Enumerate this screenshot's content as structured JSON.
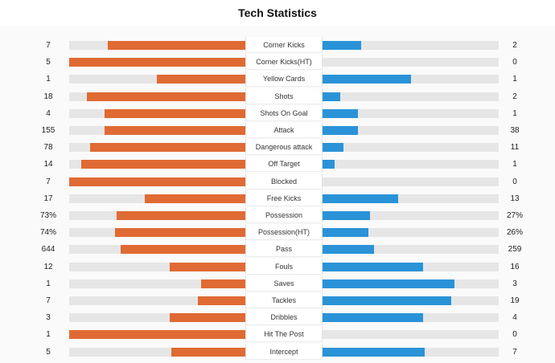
{
  "title": "Tech Statistics",
  "colors": {
    "home": "#e06a33",
    "away": "#2a93d8",
    "track": "#e6e6e6"
  },
  "stats": [
    {
      "label": "Corner Kicks",
      "home": "7",
      "away": "2",
      "home_share": 0.78,
      "away_share": 0.22
    },
    {
      "label": "Corner Kicks(HT)",
      "home": "5",
      "away": "0",
      "home_share": 1.0,
      "away_share": 0.0
    },
    {
      "label": "Yellow Cards",
      "home": "1",
      "away": "1",
      "home_share": 0.5,
      "away_share": 0.5
    },
    {
      "label": "Shots",
      "home": "18",
      "away": "2",
      "home_share": 0.9,
      "away_share": 0.1
    },
    {
      "label": "Shots On Goal",
      "home": "4",
      "away": "1",
      "home_share": 0.8,
      "away_share": 0.2
    },
    {
      "label": "Attack",
      "home": "155",
      "away": "38",
      "home_share": 0.8,
      "away_share": 0.2
    },
    {
      "label": "Dangerous attack",
      "home": "78",
      "away": "11",
      "home_share": 0.88,
      "away_share": 0.12
    },
    {
      "label": "Off Target",
      "home": "14",
      "away": "1",
      "home_share": 0.93,
      "away_share": 0.07
    },
    {
      "label": "Blocked",
      "home": "7",
      "away": "0",
      "home_share": 1.0,
      "away_share": 0.0
    },
    {
      "label": "Free Kicks",
      "home": "17",
      "away": "13",
      "home_share": 0.57,
      "away_share": 0.43
    },
    {
      "label": "Possession",
      "home": "73%",
      "away": "27%",
      "home_share": 0.73,
      "away_share": 0.27
    },
    {
      "label": "Possession(HT)",
      "home": "74%",
      "away": "26%",
      "home_share": 0.74,
      "away_share": 0.26
    },
    {
      "label": "Pass",
      "home": "644",
      "away": "259",
      "home_share": 0.71,
      "away_share": 0.29
    },
    {
      "label": "Fouls",
      "home": "12",
      "away": "16",
      "home_share": 0.43,
      "away_share": 0.57
    },
    {
      "label": "Saves",
      "home": "1",
      "away": "3",
      "home_share": 0.25,
      "away_share": 0.75
    },
    {
      "label": "Tackles",
      "home": "7",
      "away": "19",
      "home_share": 0.27,
      "away_share": 0.73
    },
    {
      "label": "Dribbles",
      "home": "3",
      "away": "4",
      "home_share": 0.43,
      "away_share": 0.57
    },
    {
      "label": "Hit The Post",
      "home": "1",
      "away": "0",
      "home_share": 1.0,
      "away_share": 0.0
    },
    {
      "label": "Intercept",
      "home": "5",
      "away": "7",
      "home_share": 0.42,
      "away_share": 0.58
    }
  ]
}
